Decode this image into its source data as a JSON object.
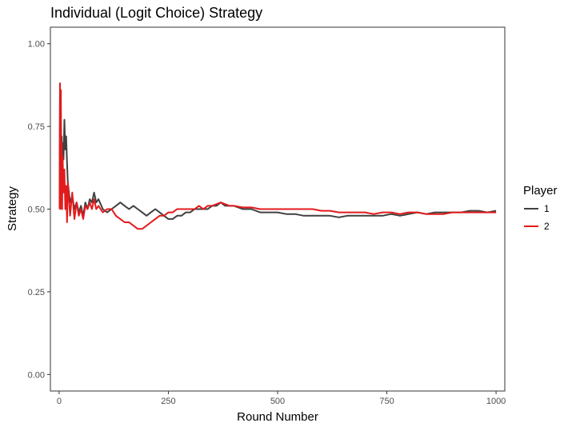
{
  "chart_data": {
    "type": "line",
    "title": "Individual (Logit Choice) Strategy",
    "xlabel": "Round Number",
    "ylabel": "Strategy",
    "xlim": [
      -20,
      1020
    ],
    "ylim": [
      -0.05,
      1.05
    ],
    "x_ticks": [
      0,
      250,
      500,
      750,
      1000
    ],
    "x_tick_labels": [
      "0",
      "250",
      "500",
      "750",
      "1000"
    ],
    "y_ticks": [
      0,
      0.25,
      0.5,
      0.75,
      1
    ],
    "y_tick_labels": [
      "0.00",
      "0.25",
      "0.50",
      "0.75",
      "1.00"
    ],
    "grid": false,
    "legend": {
      "title": "Player",
      "position": "right"
    },
    "series": [
      {
        "name": "1",
        "color": "#404040",
        "x": [
          1,
          2,
          3,
          4,
          5,
          6,
          7,
          8,
          10,
          12,
          14,
          16,
          18,
          20,
          25,
          30,
          35,
          40,
          45,
          50,
          55,
          60,
          65,
          70,
          75,
          80,
          85,
          90,
          100,
          110,
          120,
          130,
          140,
          150,
          160,
          170,
          180,
          190,
          200,
          210,
          220,
          230,
          240,
          250,
          260,
          270,
          280,
          290,
          300,
          310,
          320,
          330,
          340,
          350,
          360,
          370,
          380,
          390,
          400,
          420,
          440,
          460,
          480,
          500,
          520,
          540,
          560,
          580,
          600,
          620,
          640,
          660,
          680,
          700,
          720,
          740,
          760,
          780,
          800,
          820,
          840,
          860,
          880,
          900,
          920,
          940,
          960,
          980,
          1000
        ],
        "values": [
          0.5,
          0.88,
          0.55,
          0.75,
          0.6,
          0.72,
          0.62,
          0.7,
          0.65,
          0.77,
          0.68,
          0.72,
          0.64,
          0.58,
          0.52,
          0.54,
          0.5,
          0.52,
          0.49,
          0.51,
          0.48,
          0.52,
          0.5,
          0.53,
          0.52,
          0.55,
          0.52,
          0.53,
          0.5,
          0.49,
          0.5,
          0.51,
          0.52,
          0.51,
          0.5,
          0.51,
          0.5,
          0.49,
          0.48,
          0.49,
          0.5,
          0.49,
          0.48,
          0.47,
          0.47,
          0.48,
          0.48,
          0.49,
          0.49,
          0.5,
          0.5,
          0.5,
          0.5,
          0.51,
          0.51,
          0.52,
          0.51,
          0.51,
          0.51,
          0.5,
          0.5,
          0.49,
          0.49,
          0.49,
          0.485,
          0.485,
          0.48,
          0.48,
          0.48,
          0.48,
          0.475,
          0.48,
          0.48,
          0.48,
          0.48,
          0.48,
          0.485,
          0.48,
          0.485,
          0.49,
          0.485,
          0.49,
          0.49,
          0.49,
          0.49,
          0.495,
          0.495,
          0.49,
          0.495
        ]
      },
      {
        "name": "2",
        "color": "#e31a1c",
        "x": [
          1,
          2,
          3,
          4,
          5,
          6,
          7,
          8,
          10,
          12,
          14,
          16,
          18,
          20,
          25,
          30,
          35,
          40,
          45,
          50,
          55,
          60,
          65,
          70,
          75,
          80,
          85,
          90,
          100,
          110,
          120,
          130,
          140,
          150,
          160,
          170,
          180,
          190,
          200,
          210,
          220,
          230,
          240,
          250,
          260,
          270,
          280,
          290,
          300,
          310,
          320,
          330,
          340,
          350,
          360,
          370,
          380,
          390,
          400,
          420,
          440,
          460,
          480,
          500,
          520,
          540,
          560,
          580,
          600,
          620,
          640,
          660,
          680,
          700,
          720,
          740,
          760,
          780,
          800,
          820,
          840,
          860,
          880,
          900,
          920,
          940,
          960,
          980,
          1000
        ],
        "values": [
          0.5,
          0.88,
          0.5,
          0.86,
          0.53,
          0.7,
          0.5,
          0.66,
          0.55,
          0.62,
          0.5,
          0.57,
          0.46,
          0.58,
          0.48,
          0.55,
          0.47,
          0.52,
          0.48,
          0.5,
          0.47,
          0.51,
          0.5,
          0.52,
          0.5,
          0.53,
          0.5,
          0.51,
          0.49,
          0.5,
          0.5,
          0.48,
          0.47,
          0.46,
          0.46,
          0.45,
          0.44,
          0.44,
          0.45,
          0.46,
          0.47,
          0.48,
          0.48,
          0.49,
          0.49,
          0.5,
          0.5,
          0.5,
          0.5,
          0.5,
          0.51,
          0.5,
          0.51,
          0.51,
          0.515,
          0.52,
          0.515,
          0.51,
          0.51,
          0.505,
          0.505,
          0.5,
          0.5,
          0.5,
          0.5,
          0.5,
          0.5,
          0.5,
          0.495,
          0.495,
          0.49,
          0.49,
          0.49,
          0.49,
          0.485,
          0.49,
          0.49,
          0.485,
          0.49,
          0.49,
          0.485,
          0.485,
          0.485,
          0.49,
          0.49,
          0.49,
          0.49,
          0.49,
          0.49
        ]
      }
    ]
  }
}
